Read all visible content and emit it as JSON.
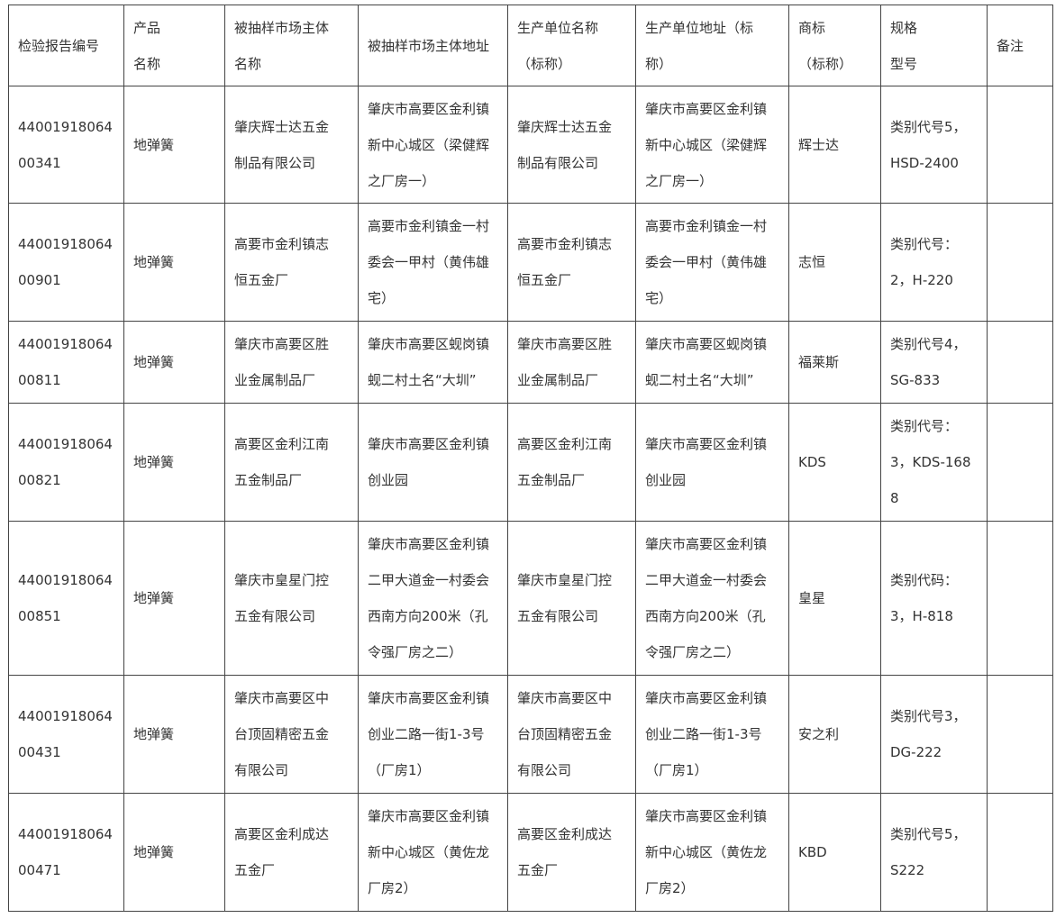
{
  "table": {
    "header": [
      [
        "检验报告编号"
      ],
      [
        "产品",
        "名称"
      ],
      [
        "被抽样市场主体",
        "名称"
      ],
      [
        "被抽样市场主体地址"
      ],
      [
        "生产单位名称",
        "（标称）"
      ],
      [
        "生产单位地址（标",
        "称）"
      ],
      [
        "商标",
        "（标称）"
      ],
      [
        "规格",
        "型号"
      ],
      [
        "备注"
      ]
    ],
    "rows": [
      [
        [
          "44001918064",
          "00341"
        ],
        [
          "地弹簧"
        ],
        [
          "肇庆辉士达五金",
          "制品有限公司"
        ],
        [
          "肇庆市高要区金利镇",
          "新中心城区（梁健辉",
          "之厂房一）"
        ],
        [
          "肇庆辉士达五金",
          "制品有限公司"
        ],
        [
          "肇庆市高要区金利镇",
          "新中心城区（梁健辉",
          "之厂房一）"
        ],
        [
          "辉士达"
        ],
        [
          "类别代号5，",
          "HSD-2400"
        ],
        []
      ],
      [
        [
          "44001918064",
          "00901"
        ],
        [
          "地弹簧"
        ],
        [
          "高要市金利镇志",
          "恒五金厂"
        ],
        [
          "高要市金利镇金一村",
          "委会一甲村（黄伟雄",
          "宅）"
        ],
        [
          "高要市金利镇志",
          "恒五金厂"
        ],
        [
          "高要市金利镇金一村",
          "委会一甲村（黄伟雄",
          "宅）"
        ],
        [
          "志恒"
        ],
        [
          "类别代号：",
          "2，H-220"
        ],
        []
      ],
      [
        [
          "44001918064",
          "00811"
        ],
        [
          "地弹簧"
        ],
        [
          "肇庆市高要区胜",
          "业金属制品厂"
        ],
        [
          "肇庆市高要区蚬岗镇",
          "蚬二村土名“大圳”"
        ],
        [
          "肇庆市高要区胜",
          "业金属制品厂"
        ],
        [
          "肇庆市高要区蚬岗镇",
          "蚬二村土名“大圳”"
        ],
        [
          "福莱斯"
        ],
        [
          "类别代号4，",
          "SG-833"
        ],
        []
      ],
      [
        [
          "44001918064",
          "00821"
        ],
        [
          "地弹簧"
        ],
        [
          "高要区金利江南",
          "五金制品厂"
        ],
        [
          "肇庆市高要区金利镇",
          "创业园"
        ],
        [
          "高要区金利江南",
          "五金制品厂"
        ],
        [
          "肇庆市高要区金利镇",
          "创业园"
        ],
        [
          "KDS"
        ],
        [
          "类别代号：",
          "3，KDS-168",
          "8"
        ],
        []
      ],
      [
        [
          "44001918064",
          "00851"
        ],
        [
          "地弹簧"
        ],
        [
          "肇庆市皇星门控",
          "五金有限公司"
        ],
        [
          "肇庆市高要区金利镇",
          "二甲大道金一村委会",
          "西南方向200米（孔",
          "令强厂房之二）"
        ],
        [
          "肇庆市皇星门控",
          "五金有限公司"
        ],
        [
          "肇庆市高要区金利镇",
          "二甲大道金一村委会",
          "西南方向200米（孔",
          "令强厂房之二）"
        ],
        [
          "皇星"
        ],
        [
          "类别代码：",
          "3，H-818"
        ],
        []
      ],
      [
        [
          "44001918064",
          "00431"
        ],
        [
          "地弹簧"
        ],
        [
          "肇庆市高要区中",
          "台顶固精密五金",
          "有限公司"
        ],
        [
          "肇庆市高要区金利镇",
          "创业二路一街1-3号",
          "（厂房1）"
        ],
        [
          "肇庆市高要区中",
          "台顶固精密五金",
          "有限公司"
        ],
        [
          "肇庆市高要区金利镇",
          "创业二路一街1-3号",
          "（厂房1）"
        ],
        [
          "安之利"
        ],
        [
          "类别代号3，",
          "DG-222"
        ],
        []
      ],
      [
        [
          "44001918064",
          "00471"
        ],
        [
          "地弹簧"
        ],
        [
          "高要区金利成达",
          "五金厂"
        ],
        [
          "肇庆市高要区金利镇",
          "新中心城区（黄佐龙",
          "厂房2）"
        ],
        [
          "高要区金利成达",
          "五金厂"
        ],
        [
          "肇庆市高要区金利镇",
          "新中心城区（黄佐龙",
          "厂房2）"
        ],
        [
          "KBD"
        ],
        [
          "类别代号5，",
          "S222"
        ],
        []
      ]
    ]
  }
}
